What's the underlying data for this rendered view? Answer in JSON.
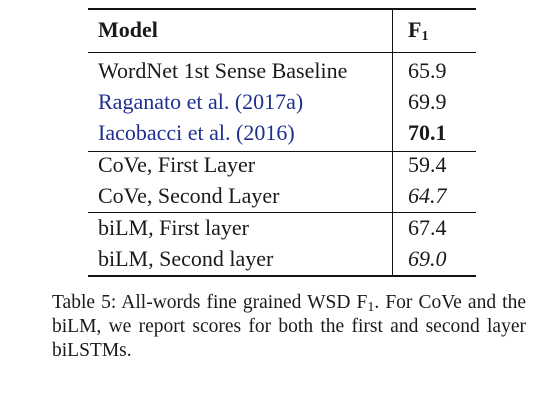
{
  "table": {
    "header": {
      "model": "Model",
      "f_letter": "F",
      "f_sub": "1"
    },
    "groups": [
      [
        {
          "model": "WordNet 1st Sense Baseline",
          "f1": "65.9",
          "style": "plain"
        },
        {
          "model": "Raganato et al. (2017a)",
          "f1": "69.9",
          "style": "cite"
        },
        {
          "model": "Iacobacci et al. (2016)",
          "f1": "70.1",
          "style": "cite-best"
        }
      ],
      [
        {
          "model": "CoVe, First Layer",
          "f1": "59.4",
          "style": "plain"
        },
        {
          "model": "CoVe, Second Layer",
          "f1": "64.7",
          "style": "italic"
        }
      ],
      [
        {
          "model": "biLM, First layer",
          "f1": "67.4",
          "style": "plain"
        },
        {
          "model": "biLM, Second layer",
          "f1": "69.0",
          "style": "italic"
        }
      ]
    ],
    "colors": {
      "citation": "#1f2f8f",
      "text": "#1a1a1a"
    }
  },
  "caption": {
    "prefix": "Table 5: All-words fine grained WSD F",
    "sub": "1",
    "suffix": ". For CoVe and the biLM, we report scores for both the first and second layer biLSTMs."
  }
}
